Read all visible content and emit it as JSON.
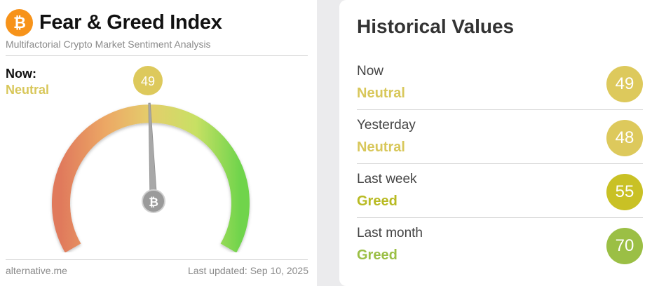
{
  "header": {
    "title": "Fear & Greed Index",
    "subtitle": "Multifactorial Crypto Market Sentiment Analysis",
    "logo_icon": "bitcoin-icon",
    "logo_color": "#f7931a"
  },
  "now": {
    "label": "Now:",
    "classification": "Neutral",
    "value": "49",
    "classification_color": "#d8c75a"
  },
  "gauge": {
    "value": 49,
    "min": 0,
    "max": 100,
    "needle_icon": "bitcoin-icon",
    "badge_color": "#ddc95c"
  },
  "footer": {
    "source": "alternative.me",
    "updated": "Last updated: Sep 10, 2025"
  },
  "historical": {
    "title": "Historical Values",
    "items": [
      {
        "label": "Now",
        "classification": "Neutral",
        "value": "49",
        "color": "#ddc95c",
        "text_color": "#d8c75a"
      },
      {
        "label": "Yesterday",
        "classification": "Neutral",
        "value": "48",
        "color": "#ddc95c",
        "text_color": "#d8c75a"
      },
      {
        "label": "Last week",
        "classification": "Greed",
        "value": "55",
        "color": "#c9c125",
        "text_color": "#b8ba22"
      },
      {
        "label": "Last month",
        "classification": "Greed",
        "value": "70",
        "color": "#9bbf45",
        "text_color": "#9bbf45"
      }
    ]
  }
}
